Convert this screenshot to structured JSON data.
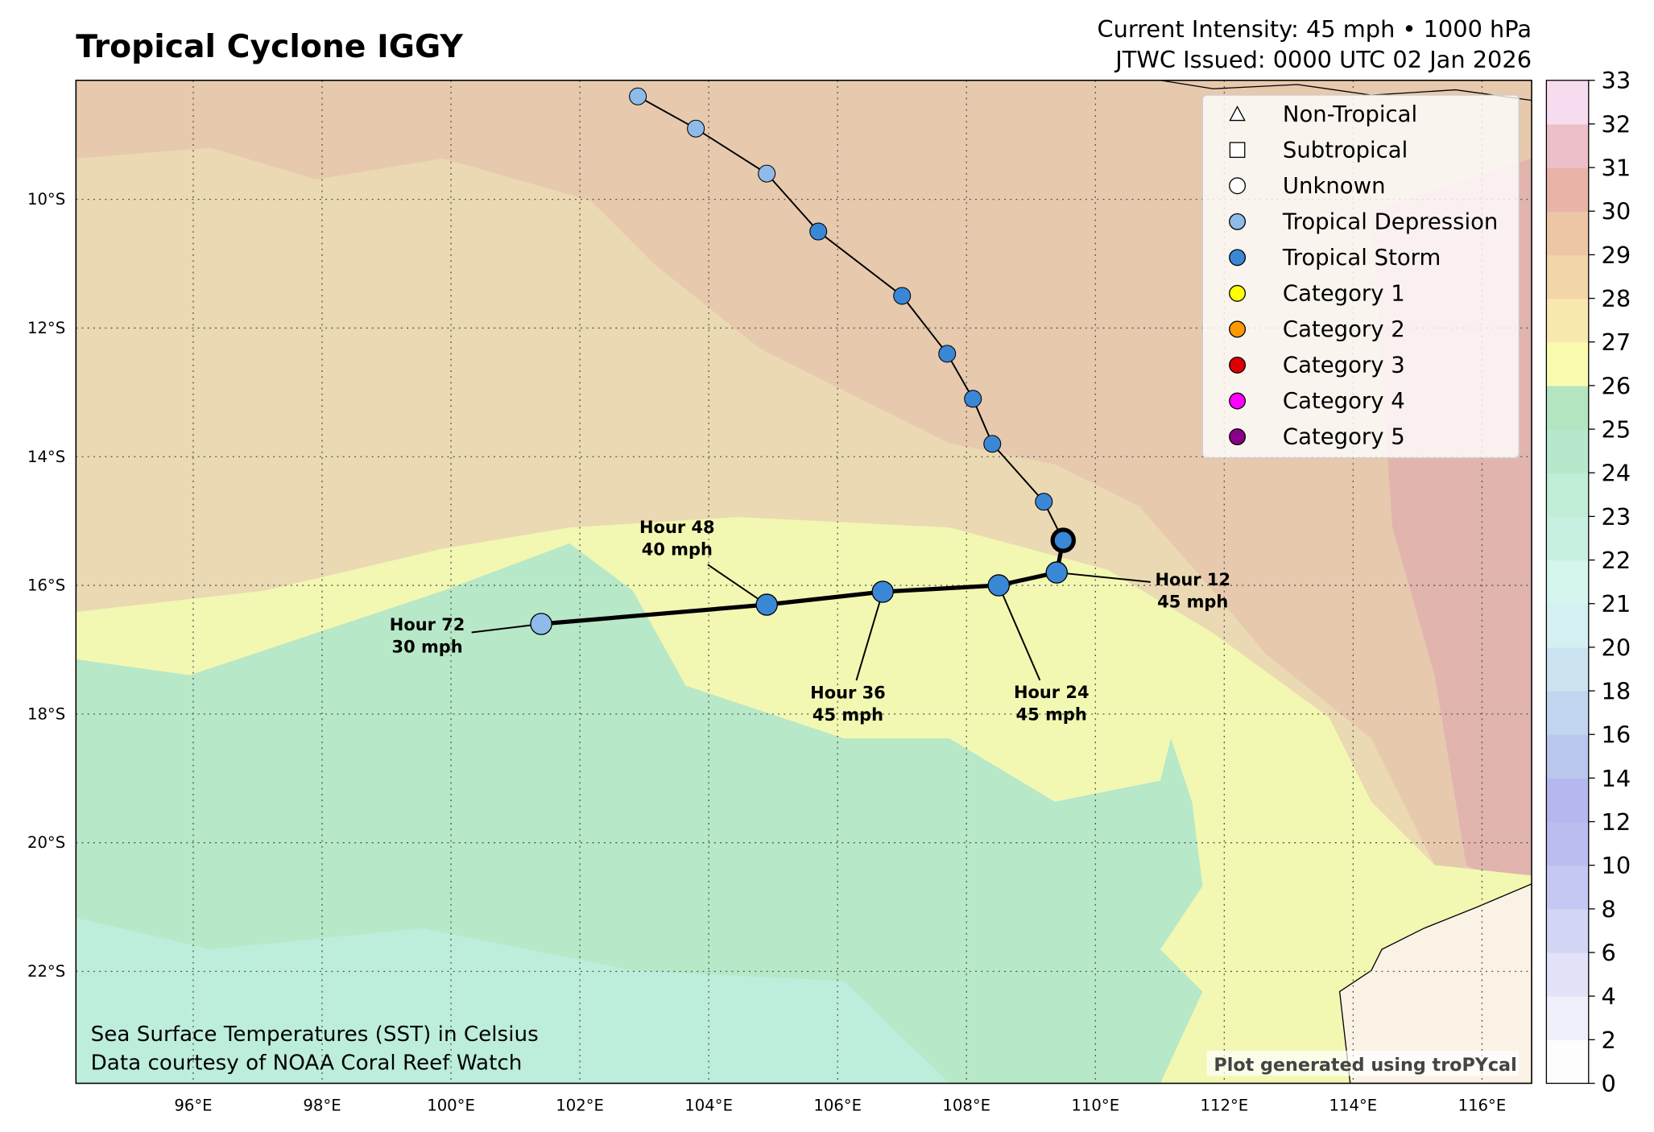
{
  "chart_data": {
    "type": "track_map",
    "title": "Tropical Cyclone IGGY",
    "header_lines": [
      "Current Intensity: 45 mph • 1000 hPa",
      "JTWC Issued: 0000 UTC 02 Jan 2026"
    ],
    "footnotes": [
      "Sea Surface Temperatures (SST) in Celsius",
      "Data courtesy of NOAA Coral Reef Watch"
    ],
    "credit": "Plot generated using troPYcal",
    "xlim": [
      94.18,
      116.77
    ],
    "ylim": [
      -23.74,
      -8.15
    ],
    "xticks": [
      {
        "value": 96,
        "label": "96°E"
      },
      {
        "value": 98,
        "label": "98°E"
      },
      {
        "value": 100,
        "label": "100°E"
      },
      {
        "value": 102,
        "label": "102°E"
      },
      {
        "value": 104,
        "label": "104°E"
      },
      {
        "value": 106,
        "label": "106°E"
      },
      {
        "value": 108,
        "label": "108°E"
      },
      {
        "value": 110,
        "label": "110°E"
      },
      {
        "value": 112,
        "label": "112°E"
      },
      {
        "value": 114,
        "label": "114°E"
      },
      {
        "value": 116,
        "label": "116°E"
      }
    ],
    "yticks": [
      {
        "value": -10,
        "label": "10°S"
      },
      {
        "value": -12,
        "label": "12°S"
      },
      {
        "value": -14,
        "label": "14°S"
      },
      {
        "value": -16,
        "label": "16°S"
      },
      {
        "value": -18,
        "label": "18°S"
      },
      {
        "value": -20,
        "label": "20°S"
      },
      {
        "value": -22,
        "label": "22°S"
      }
    ],
    "grid": true,
    "legend": {
      "position": "upper right",
      "entries": [
        {
          "name": "Non-Tropical",
          "marker": "triangle",
          "color": "#ffffff"
        },
        {
          "name": "Subtropical",
          "marker": "square",
          "color": "#ffffff"
        },
        {
          "name": "Unknown",
          "marker": "circle",
          "color": "#ffffff"
        },
        {
          "name": "Tropical Depression",
          "marker": "circle",
          "color": "#8fbbea"
        },
        {
          "name": "Tropical Storm",
          "marker": "circle",
          "color": "#3a87d6"
        },
        {
          "name": "Category 1",
          "marker": "circle",
          "color": "#ffff00"
        },
        {
          "name": "Category 2",
          "marker": "circle",
          "color": "#ff9900"
        },
        {
          "name": "Category 3",
          "marker": "circle",
          "color": "#dd0000"
        },
        {
          "name": "Category 4",
          "marker": "circle",
          "color": "#ff00ff"
        },
        {
          "name": "Category 5",
          "marker": "circle",
          "color": "#8b0088"
        }
      ]
    },
    "observed": {
      "x": [
        102.9,
        103.8,
        104.9,
        105.7,
        107.0,
        107.7,
        108.1,
        108.4,
        109.2
      ],
      "y": [
        -8.4,
        -8.9,
        -9.6,
        -10.5,
        -11.5,
        -12.4,
        -13.1,
        -13.8,
        -14.7
      ],
      "colors": [
        "#8fbbea",
        "#8fbbea",
        "#8fbbea",
        "#3a87d6",
        "#3a87d6",
        "#3a87d6",
        "#3a87d6",
        "#3a87d6",
        "#3a87d6"
      ]
    },
    "current": {
      "x": 109.5,
      "y": -15.3,
      "color": "#3a87d6"
    },
    "forecast": {
      "x": [
        109.4,
        108.5,
        106.7,
        104.9,
        101.4
      ],
      "y": [
        -15.8,
        -16.0,
        -16.1,
        -16.3,
        -16.6
      ],
      "colors": [
        "#3a87d6",
        "#3a87d6",
        "#3a87d6",
        "#3a87d6",
        "#8fbbea"
      ],
      "labels": [
        [
          "Hour 12",
          "45 mph"
        ],
        [
          "Hour 24",
          "45 mph"
        ],
        [
          "Hour 36",
          "45 mph"
        ],
        [
          "Hour 48",
          "40 mph"
        ],
        [
          "Hour 72",
          "30 mph"
        ]
      ]
    },
    "colorbar": {
      "levels": [
        0,
        2,
        4,
        6,
        8,
        10,
        12,
        14,
        16,
        18,
        20,
        21,
        22,
        23,
        24,
        25,
        26,
        27,
        28,
        29,
        30,
        31,
        32,
        33
      ],
      "colors": [
        "#fdfdfe",
        "#f0f0fb",
        "#e2e3f8",
        "#d3d5f5",
        "#c5c8f2",
        "#b9bdf0",
        "#b4b8ee",
        "#bac6ee",
        "#c2d5ee",
        "#cbe2ef",
        "#d5f0f0",
        "#d5f5ef",
        "#c8f0e0",
        "#c0edd6",
        "#b7e8cc",
        "#b2e5c0",
        "#fbfbb0",
        "#f7e8b0",
        "#f2d5a9",
        "#edc6a5",
        "#e9b3a8",
        "#edbfc8",
        "#f7dcef"
      ]
    }
  }
}
